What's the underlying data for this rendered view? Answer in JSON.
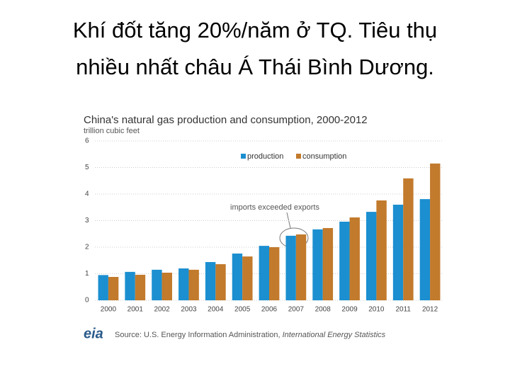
{
  "slide": {
    "title_lines": [
      "Khí đốt tăng 20%/năm ở TQ. Tiêu thụ",
      "nhiều nhất châu Á Thái Bình Dương."
    ]
  },
  "chart_data": {
    "type": "bar",
    "title": "China's natural gas production and consumption, 2000-2012",
    "y_label": "trillion cubic feet",
    "annotation": "imports exceeded exports",
    "logo": "eia",
    "source": [
      "Source: U.S. Energy Information Administration,",
      "International Energy Statistics"
    ],
    "categories": [
      "2000",
      "2001",
      "2002",
      "2003",
      "2004",
      "2005",
      "2006",
      "2007",
      "2008",
      "2009",
      "2010",
      "2011",
      "2012"
    ],
    "series": [
      {
        "name": "production",
        "color": "#1b8fd0",
        "values": [
          0.95,
          1.07,
          1.15,
          1.2,
          1.44,
          1.76,
          2.05,
          2.43,
          2.67,
          2.96,
          3.33,
          3.6,
          3.81
        ]
      },
      {
        "name": "consumption",
        "color": "#c27a2c",
        "values": [
          0.88,
          0.96,
          1.04,
          1.15,
          1.36,
          1.65,
          2.0,
          2.48,
          2.72,
          3.12,
          3.76,
          4.59,
          5.15
        ]
      }
    ],
    "ylim": [
      0,
      6
    ],
    "yticks": [
      0,
      1,
      2,
      3,
      4,
      5,
      6
    ],
    "grid": true,
    "legend": "top"
  }
}
